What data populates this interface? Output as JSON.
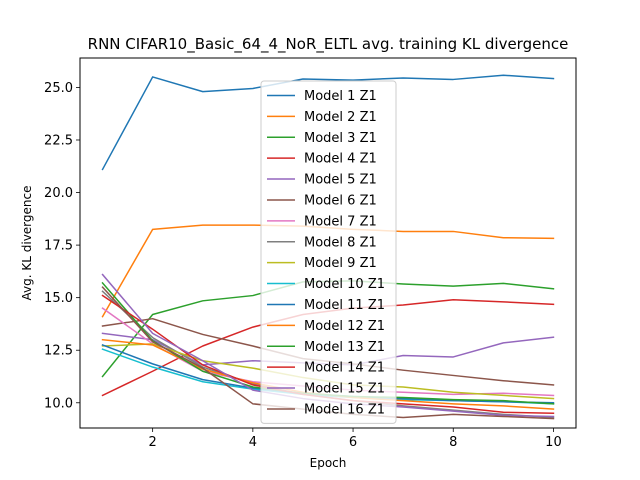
{
  "chart_data": {
    "type": "line",
    "title": "RNN CIFAR10_Basic_64_4_NoR_ELTL avg. training KL divergence",
    "xlabel": "Epoch",
    "ylabel": "Avg. KL divergence",
    "xlim": [
      0.55,
      10.45
    ],
    "ylim": [
      8.8,
      26.4
    ],
    "xticks": [
      2,
      4,
      6,
      8,
      10
    ],
    "yticks": [
      10.0,
      12.5,
      15.0,
      17.5,
      20.0,
      22.5,
      25.0
    ],
    "ytick_labels": [
      "10.0",
      "12.5",
      "15.0",
      "17.5",
      "20.0",
      "22.5",
      "25.0"
    ],
    "grid": false,
    "legend_position": "upper center",
    "x": [
      1,
      2,
      3,
      4,
      5,
      6,
      7,
      8,
      9,
      10
    ],
    "series": [
      {
        "name": "Model 1 Z1",
        "color": "#1f77b4",
        "values": [
          21.1,
          25.5,
          24.8,
          24.95,
          25.4,
          25.35,
          25.45,
          25.38,
          25.58,
          25.42
        ]
      },
      {
        "name": "Model 2 Z1",
        "color": "#ff7f0e",
        "values": [
          14.1,
          18.25,
          18.45,
          18.45,
          18.4,
          18.25,
          18.15,
          18.15,
          17.85,
          17.82
        ]
      },
      {
        "name": "Model 3 Z1",
        "color": "#2ca02c",
        "values": [
          11.25,
          14.2,
          14.85,
          15.1,
          15.75,
          15.8,
          15.65,
          15.55,
          15.68,
          15.42
        ]
      },
      {
        "name": "Model 4 Z1",
        "color": "#d62728",
        "values": [
          10.35,
          11.5,
          12.7,
          13.6,
          14.2,
          14.5,
          14.65,
          14.9,
          14.8,
          14.68
        ]
      },
      {
        "name": "Model 5 Z1",
        "color": "#9467bd",
        "values": [
          13.3,
          13.0,
          11.8,
          12.0,
          11.9,
          11.8,
          12.25,
          12.18,
          12.85,
          13.12
        ]
      },
      {
        "name": "Model 6 Z1",
        "color": "#8c564b",
        "values": [
          13.65,
          14.0,
          13.25,
          12.7,
          12.1,
          11.85,
          11.55,
          11.3,
          11.05,
          10.85
        ]
      },
      {
        "name": "Model 7 Z1",
        "color": "#e377c2",
        "values": [
          14.5,
          12.8,
          11.5,
          11.0,
          10.8,
          10.6,
          10.5,
          10.4,
          10.45,
          10.35
        ]
      },
      {
        "name": "Model 8 Z1",
        "color": "#7f7f7f",
        "values": [
          15.3,
          13.1,
          11.7,
          10.9,
          10.4,
          10.1,
          9.85,
          9.65,
          9.45,
          9.3
        ]
      },
      {
        "name": "Model 9 Z1",
        "color": "#bcbd22",
        "values": [
          12.7,
          12.8,
          12.0,
          11.65,
          11.2,
          10.85,
          10.75,
          10.5,
          10.35,
          10.2
        ]
      },
      {
        "name": "Model 10 Z1",
        "color": "#17becf",
        "values": [
          12.55,
          11.7,
          11.0,
          10.65,
          10.4,
          10.25,
          10.15,
          10.1,
          10.05,
          9.95
        ]
      },
      {
        "name": "Model 11 Z1",
        "color": "#1f77b4",
        "values": [
          12.75,
          11.85,
          11.1,
          10.7,
          10.45,
          10.3,
          10.2,
          10.1,
          10.05,
          10.0
        ]
      },
      {
        "name": "Model 12 Z1",
        "color": "#ff7f0e",
        "values": [
          13.0,
          12.75,
          11.6,
          10.95,
          10.5,
          10.25,
          10.1,
          9.95,
          9.85,
          9.7
        ]
      },
      {
        "name": "Model 13 Z1",
        "color": "#2ca02c",
        "values": [
          15.7,
          12.95,
          11.5,
          10.75,
          10.45,
          10.3,
          10.25,
          10.15,
          10.1,
          9.95
        ]
      },
      {
        "name": "Model 14 Z1",
        "color": "#d62728",
        "values": [
          15.1,
          13.5,
          11.8,
          10.85,
          10.4,
          10.1,
          9.95,
          9.8,
          9.55,
          9.5
        ]
      },
      {
        "name": "Model 15 Z1",
        "color": "#9467bd",
        "values": [
          16.1,
          13.3,
          12.0,
          10.6,
          10.2,
          9.95,
          9.8,
          9.6,
          9.4,
          9.35
        ]
      },
      {
        "name": "Model 16 Z1",
        "color": "#8c564b",
        "values": [
          15.5,
          12.9,
          11.65,
          9.95,
          9.7,
          9.45,
          9.3,
          9.45,
          9.35,
          9.25
        ]
      }
    ]
  }
}
